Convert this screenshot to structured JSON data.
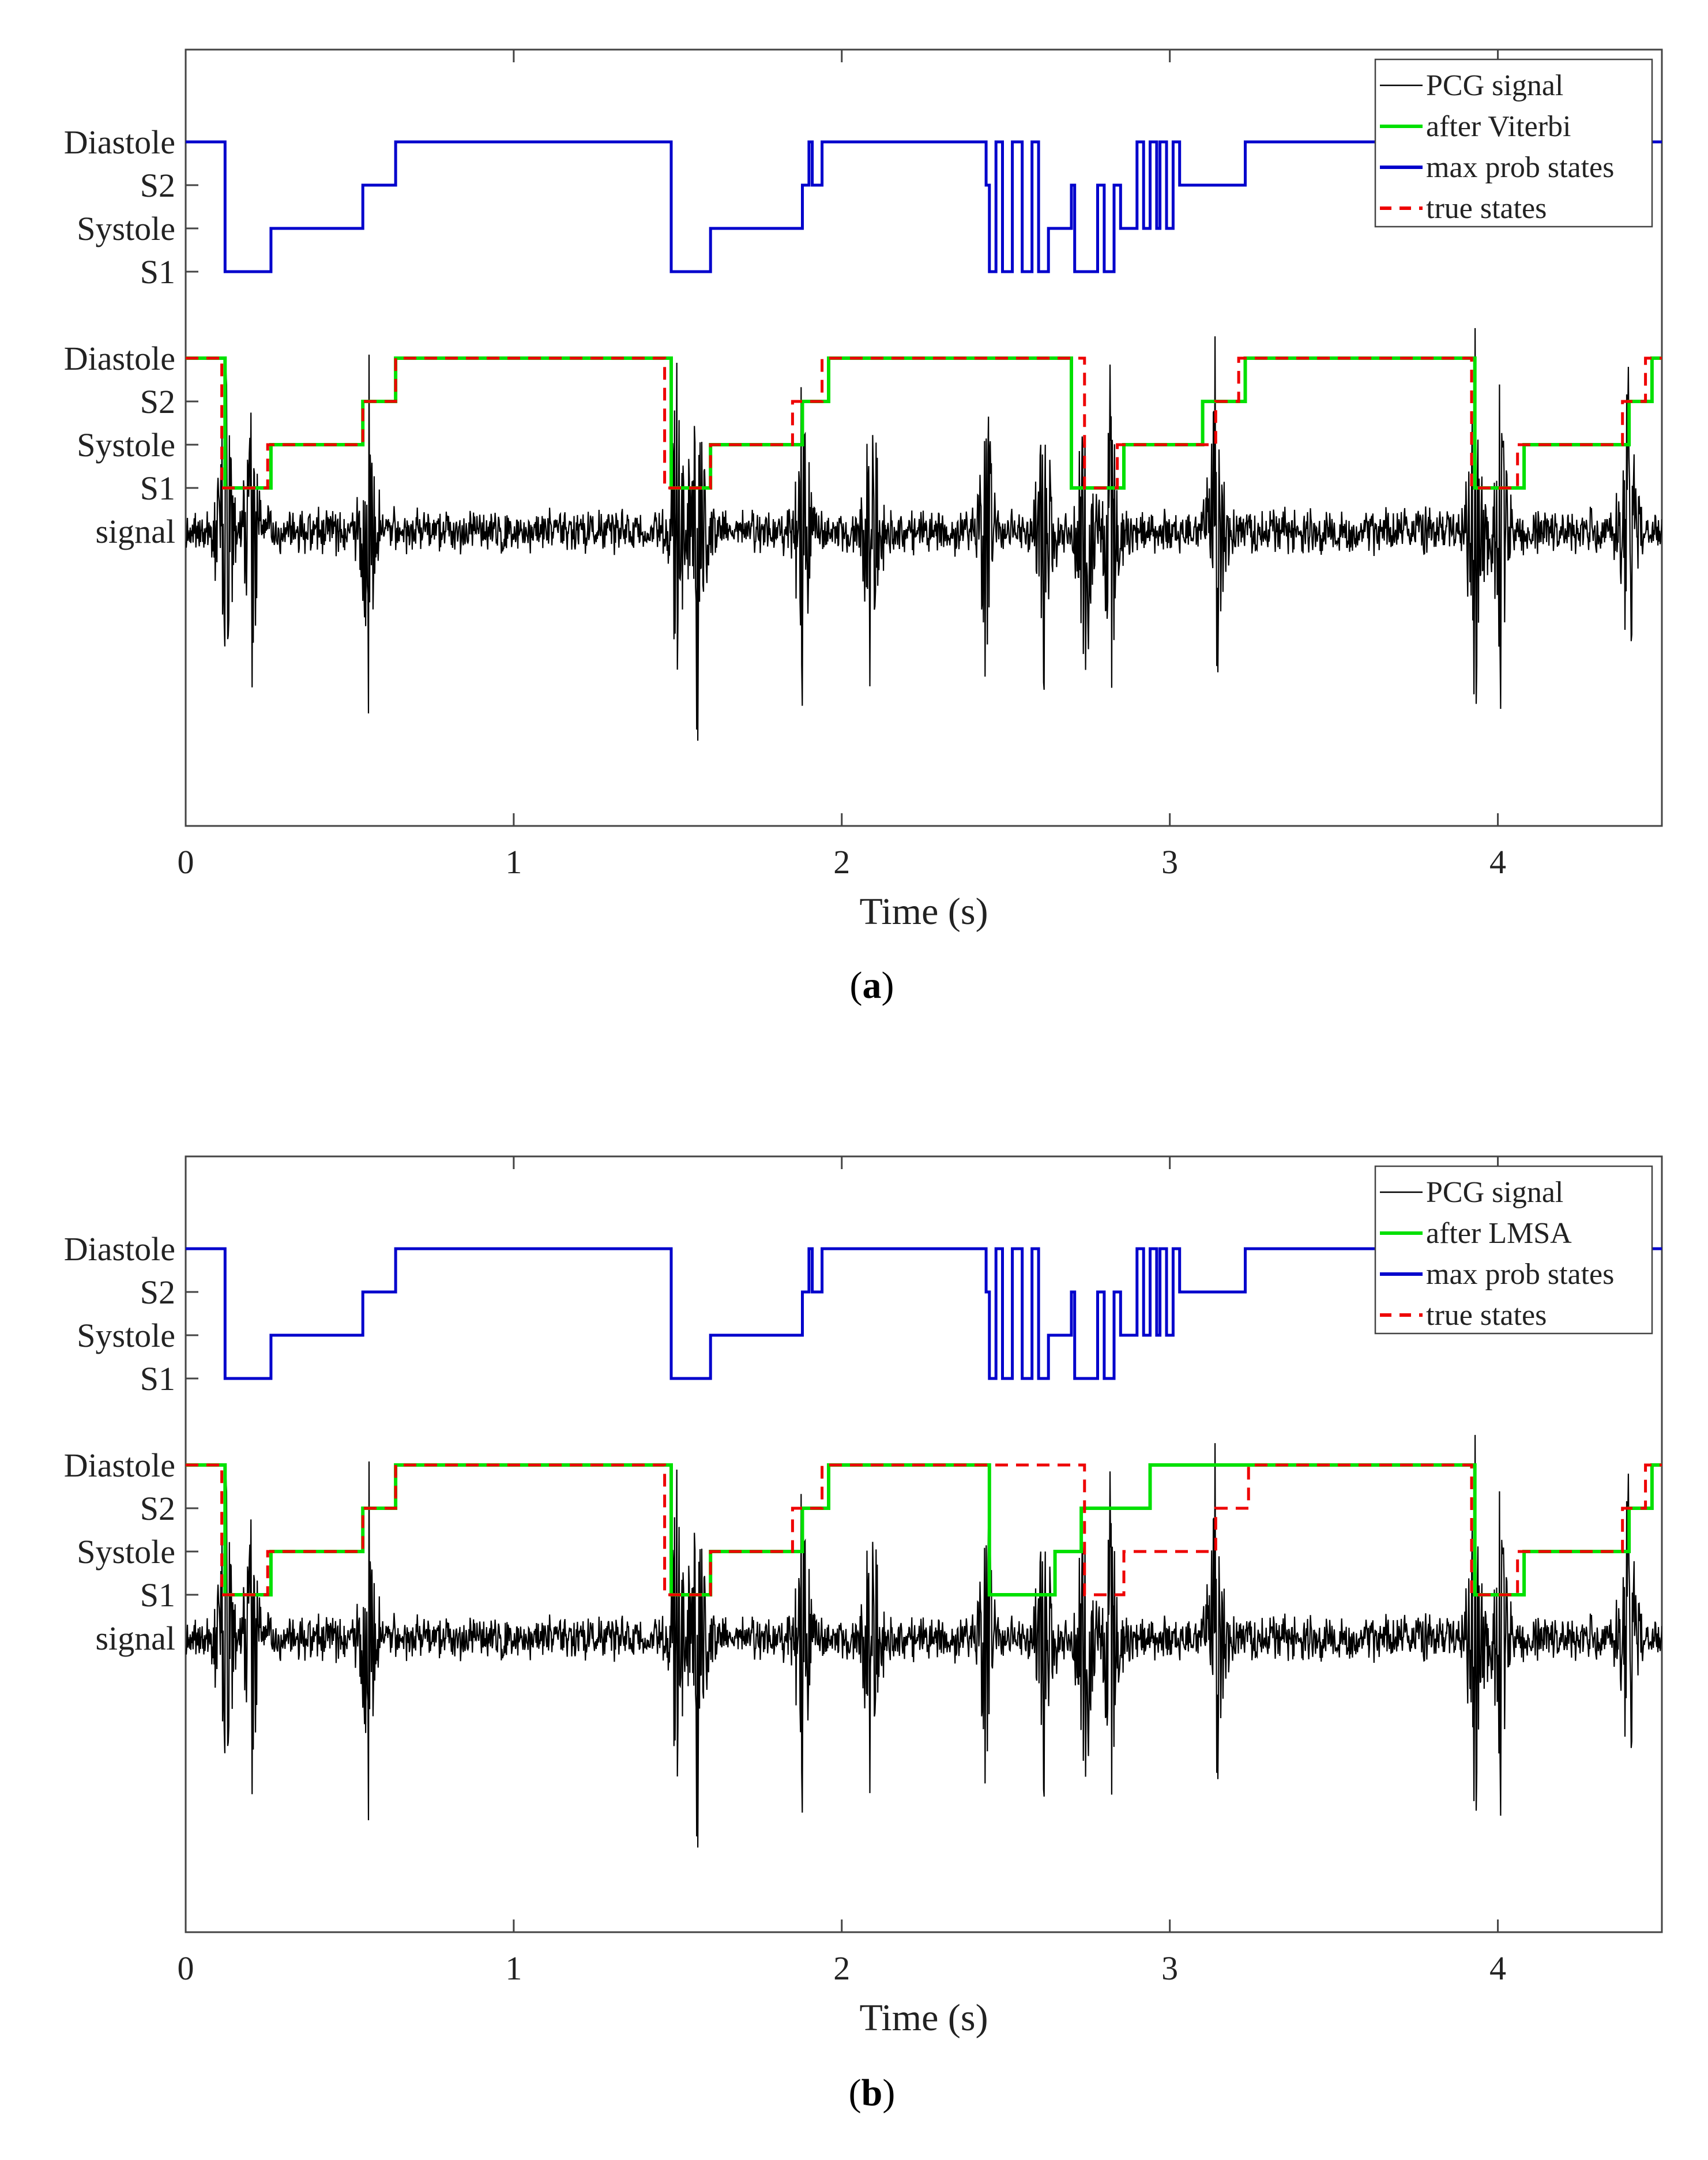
{
  "chart_data": [
    {
      "id": "a",
      "type": "line",
      "caption": "a",
      "xlabel": "Time (s)",
      "xlim": [
        0,
        4.5
      ],
      "xticks": [
        0,
        1,
        2,
        3,
        4
      ],
      "xtick_labels": [
        "0",
        "1",
        "2",
        "3",
        "4"
      ],
      "band_labels": {
        "upper": [
          "Diastole",
          "S2",
          "Systole",
          "S1"
        ],
        "lower": [
          "Diastole",
          "S2",
          "Systole",
          "S1"
        ],
        "signal": "signal"
      },
      "grid": false,
      "legend_position": "top-right",
      "legend": [
        {
          "label": "PCG signal",
          "series": "pcg"
        },
        {
          "label": "after Viterbi",
          "series": "decoded"
        },
        {
          "label": "max prob states",
          "series": "maxprob"
        },
        {
          "label": "true states",
          "series": "truth"
        }
      ],
      "colors": {
        "pcg": "#000000",
        "decoded": "#00e000",
        "maxprob": "#0000cc",
        "truth": "#ee0000"
      },
      "series": [
        {
          "name": "max prob states",
          "key": "maxprob",
          "band": "upper",
          "state_codes": {
            "S1": 1,
            "Systole": 2,
            "S2": 3,
            "Diastole": 4
          },
          "steps": [
            [
              0,
              4
            ],
            [
              0.12,
              1
            ],
            [
              0.26,
              2
            ],
            [
              0.54,
              3
            ],
            [
              0.64,
              4
            ],
            [
              1.48,
              1
            ],
            [
              1.6,
              2
            ],
            [
              1.88,
              3
            ],
            [
              1.9,
              4
            ],
            [
              1.91,
              3
            ],
            [
              1.94,
              4
            ],
            [
              2.44,
              3
            ],
            [
              2.45,
              1
            ],
            [
              2.47,
              4
            ],
            [
              2.49,
              1
            ],
            [
              2.52,
              4
            ],
            [
              2.55,
              1
            ],
            [
              2.58,
              4
            ],
            [
              2.6,
              1
            ],
            [
              2.63,
              2
            ],
            [
              2.7,
              3
            ],
            [
              2.71,
              1
            ],
            [
              2.78,
              3
            ],
            [
              2.8,
              1
            ],
            [
              2.83,
              3
            ],
            [
              2.85,
              2
            ],
            [
              2.9,
              4
            ],
            [
              2.92,
              2
            ],
            [
              2.94,
              4
            ],
            [
              2.96,
              2
            ],
            [
              2.97,
              4
            ],
            [
              2.99,
              2
            ],
            [
              3.01,
              4
            ],
            [
              3.03,
              3
            ],
            [
              3.23,
              4
            ],
            [
              4.5,
              4
            ]
          ]
        },
        {
          "name": "after Viterbi",
          "key": "decoded",
          "band": "lower",
          "state_codes": {
            "S1": 1,
            "Systole": 2,
            "S2": 3,
            "Diastole": 4
          },
          "steps": [
            [
              0,
              4
            ],
            [
              0.12,
              1
            ],
            [
              0.26,
              2
            ],
            [
              0.54,
              3
            ],
            [
              0.64,
              4
            ],
            [
              1.48,
              1
            ],
            [
              1.6,
              2
            ],
            [
              1.88,
              3
            ],
            [
              1.96,
              4
            ],
            [
              2.7,
              1
            ],
            [
              2.86,
              2
            ],
            [
              3.1,
              3
            ],
            [
              3.23,
              4
            ],
            [
              3.93,
              1
            ],
            [
              4.08,
              2
            ],
            [
              4.4,
              3
            ],
            [
              4.47,
              4
            ],
            [
              4.5,
              4
            ]
          ]
        },
        {
          "name": "true states",
          "key": "truth",
          "band": "lower",
          "state_codes": {
            "S1": 1,
            "Systole": 2,
            "S2": 3,
            "Diastole": 4
          },
          "steps": [
            [
              0,
              4
            ],
            [
              0.11,
              1
            ],
            [
              0.25,
              2
            ],
            [
              0.54,
              3
            ],
            [
              0.64,
              4
            ],
            [
              1.46,
              1
            ],
            [
              1.6,
              2
            ],
            [
              1.85,
              3
            ],
            [
              1.94,
              4
            ],
            [
              2.74,
              1
            ],
            [
              2.84,
              2
            ],
            [
              3.14,
              3
            ],
            [
              3.21,
              4
            ],
            [
              3.92,
              1
            ],
            [
              4.06,
              2
            ],
            [
              4.38,
              3
            ],
            [
              4.45,
              4
            ],
            [
              4.5,
              4
            ]
          ]
        },
        {
          "name": "PCG signal",
          "key": "pcg",
          "band": "signal",
          "seed": 7,
          "spike_times": [
            0.12,
            0.2,
            0.56,
            1.5,
            1.56,
            1.88,
            2.09,
            2.44,
            2.62,
            2.74,
            2.82,
            3.14,
            3.93,
            4.01,
            4.4
          ]
        }
      ]
    },
    {
      "id": "b",
      "type": "line",
      "caption": "b",
      "xlabel": "Time (s)",
      "xlim": [
        0,
        4.5
      ],
      "xticks": [
        0,
        1,
        2,
        3,
        4
      ],
      "xtick_labels": [
        "0",
        "1",
        "2",
        "3",
        "4"
      ],
      "band_labels": {
        "upper": [
          "Diastole",
          "S2",
          "Systole",
          "S1"
        ],
        "lower": [
          "Diastole",
          "S2",
          "Systole",
          "S1"
        ],
        "signal": "signal"
      },
      "grid": false,
      "legend_position": "top-right",
      "legend": [
        {
          "label": "PCG signal",
          "series": "pcg"
        },
        {
          "label": "after LMSA",
          "series": "decoded"
        },
        {
          "label": "max prob states",
          "series": "maxprob"
        },
        {
          "label": "true states",
          "series": "truth"
        }
      ],
      "colors": {
        "pcg": "#000000",
        "decoded": "#00e000",
        "maxprob": "#0000cc",
        "truth": "#ee0000"
      },
      "series": [
        {
          "name": "max prob states",
          "key": "maxprob",
          "band": "upper",
          "state_codes": {
            "S1": 1,
            "Systole": 2,
            "S2": 3,
            "Diastole": 4
          },
          "steps": [
            [
              0,
              4
            ],
            [
              0.12,
              1
            ],
            [
              0.26,
              2
            ],
            [
              0.54,
              3
            ],
            [
              0.64,
              4
            ],
            [
              1.48,
              1
            ],
            [
              1.6,
              2
            ],
            [
              1.88,
              3
            ],
            [
              1.9,
              4
            ],
            [
              1.91,
              3
            ],
            [
              1.94,
              4
            ],
            [
              2.44,
              3
            ],
            [
              2.45,
              1
            ],
            [
              2.47,
              4
            ],
            [
              2.49,
              1
            ],
            [
              2.52,
              4
            ],
            [
              2.55,
              1
            ],
            [
              2.58,
              4
            ],
            [
              2.6,
              1
            ],
            [
              2.63,
              2
            ],
            [
              2.7,
              3
            ],
            [
              2.71,
              1
            ],
            [
              2.78,
              3
            ],
            [
              2.8,
              1
            ],
            [
              2.83,
              3
            ],
            [
              2.85,
              2
            ],
            [
              2.9,
              4
            ],
            [
              2.92,
              2
            ],
            [
              2.94,
              4
            ],
            [
              2.96,
              2
            ],
            [
              2.97,
              4
            ],
            [
              2.99,
              2
            ],
            [
              3.01,
              4
            ],
            [
              3.03,
              3
            ],
            [
              3.23,
              4
            ],
            [
              4.5,
              4
            ]
          ]
        },
        {
          "name": "after LMSA",
          "key": "decoded",
          "band": "lower",
          "state_codes": {
            "S1": 1,
            "Systole": 2,
            "S2": 3,
            "Diastole": 4
          },
          "steps": [
            [
              0,
              4
            ],
            [
              0.12,
              1
            ],
            [
              0.26,
              2
            ],
            [
              0.54,
              3
            ],
            [
              0.64,
              4
            ],
            [
              1.48,
              1
            ],
            [
              1.6,
              2
            ],
            [
              1.88,
              3
            ],
            [
              1.96,
              4
            ],
            [
              2.45,
              1
            ],
            [
              2.65,
              2
            ],
            [
              2.73,
              3
            ],
            [
              2.94,
              4
            ],
            [
              3.93,
              1
            ],
            [
              4.08,
              2
            ],
            [
              4.4,
              3
            ],
            [
              4.47,
              4
            ],
            [
              4.5,
              4
            ]
          ]
        },
        {
          "name": "true states",
          "key": "truth",
          "band": "lower",
          "state_codes": {
            "S1": 1,
            "Systole": 2,
            "S2": 3,
            "Diastole": 4
          },
          "steps": [
            [
              0,
              4
            ],
            [
              0.11,
              1
            ],
            [
              0.25,
              2
            ],
            [
              0.54,
              3
            ],
            [
              0.64,
              4
            ],
            [
              1.46,
              1
            ],
            [
              1.6,
              2
            ],
            [
              1.85,
              3
            ],
            [
              1.94,
              4
            ],
            [
              2.74,
              1
            ],
            [
              2.86,
              2
            ],
            [
              3.14,
              3
            ],
            [
              3.24,
              4
            ],
            [
              3.92,
              1
            ],
            [
              4.06,
              2
            ],
            [
              4.38,
              3
            ],
            [
              4.45,
              4
            ],
            [
              4.5,
              4
            ]
          ]
        },
        {
          "name": "PCG signal",
          "key": "pcg",
          "band": "signal",
          "seed": 7,
          "spike_times": [
            0.12,
            0.2,
            0.56,
            1.5,
            1.56,
            1.88,
            2.09,
            2.44,
            2.62,
            2.74,
            2.82,
            3.14,
            3.93,
            4.01,
            4.4
          ]
        }
      ]
    }
  ]
}
